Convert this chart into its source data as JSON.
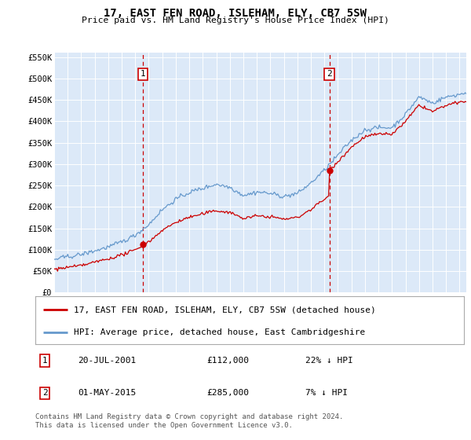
{
  "title": "17, EAST FEN ROAD, ISLEHAM, ELY, CB7 5SW",
  "subtitle": "Price paid vs. HM Land Registry's House Price Index (HPI)",
  "red_label": "17, EAST FEN ROAD, ISLEHAM, ELY, CB7 5SW (detached house)",
  "blue_label": "HPI: Average price, detached house, East Cambridgeshire",
  "ann1": {
    "label": "1",
    "date": "20-JUL-2001",
    "price": "£112,000",
    "hpi": "22% ↓ HPI",
    "x_year": 2001.55,
    "y_val": 112000
  },
  "ann2": {
    "label": "2",
    "date": "01-MAY-2015",
    "price": "£285,000",
    "hpi": "7% ↓ HPI",
    "x_year": 2015.37,
    "y_val": 285000
  },
  "vline1_x": 2001.55,
  "vline2_x": 2015.37,
  "ylim": [
    0,
    560000
  ],
  "xlim_start": 1995.0,
  "xlim_end": 2025.5,
  "yticks": [
    0,
    50000,
    100000,
    150000,
    200000,
    250000,
    300000,
    350000,
    400000,
    450000,
    500000,
    550000
  ],
  "ytick_labels": [
    "£0",
    "£50K",
    "£100K",
    "£150K",
    "£200K",
    "£250K",
    "£300K",
    "£350K",
    "£400K",
    "£450K",
    "£500K",
    "£550K"
  ],
  "xticks": [
    1995,
    1996,
    1997,
    1998,
    1999,
    2000,
    2001,
    2002,
    2003,
    2004,
    2005,
    2006,
    2007,
    2008,
    2009,
    2010,
    2011,
    2012,
    2013,
    2014,
    2015,
    2016,
    2017,
    2018,
    2019,
    2020,
    2021,
    2022,
    2023,
    2024,
    2025
  ],
  "background_color": "#dce9f8",
  "grid_color": "#ffffff",
  "red_color": "#cc0000",
  "blue_color": "#6699cc",
  "sale1_year": 2001.55,
  "sale1_price": 112000,
  "sale2_year": 2015.37,
  "sale2_price": 285000,
  "footnote": "Contains HM Land Registry data © Crown copyright and database right 2024.\nThis data is licensed under the Open Government Licence v3.0."
}
